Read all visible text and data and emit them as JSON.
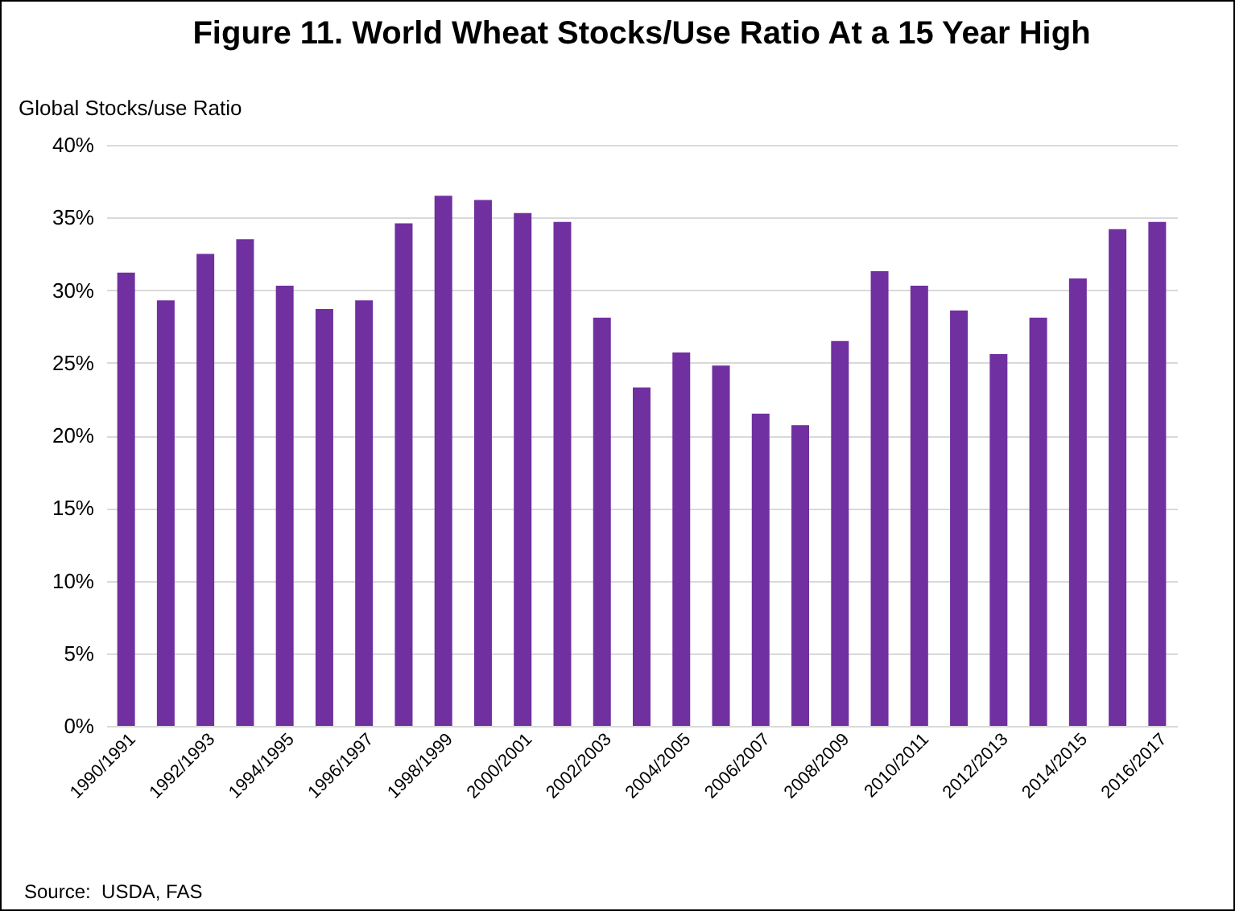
{
  "chart_data": {
    "type": "bar",
    "title": "Figure 11. World Wheat Stocks/Use Ratio At a 15 Year High",
    "ylabel": "Global Stocks/use Ratio",
    "categories": [
      "1990/1991",
      null,
      "1992/1993",
      null,
      "1994/1995",
      null,
      "1996/1997",
      null,
      "1998/1999",
      null,
      "2000/2001",
      null,
      "2002/2003",
      null,
      "2004/2005",
      null,
      "2006/2007",
      null,
      "2008/2009",
      null,
      "2010/2011",
      null,
      "2012/2013",
      null,
      "2014/2015",
      null,
      "2016/2017"
    ],
    "values": [
      31.2,
      29.3,
      32.5,
      33.5,
      30.3,
      28.7,
      29.3,
      34.6,
      36.5,
      36.2,
      35.3,
      34.7,
      28.1,
      23.3,
      25.7,
      24.8,
      21.5,
      20.7,
      26.5,
      31.3,
      30.3,
      28.6,
      25.6,
      28.1,
      30.8,
      34.2,
      34.7
    ],
    "color": "#7030a0",
    "ylim": [
      0,
      40
    ],
    "yticks": [
      {
        "value": 0,
        "label": "0%"
      },
      {
        "value": 5,
        "label": "5%"
      },
      {
        "value": 10,
        "label": "10%"
      },
      {
        "value": 15,
        "label": "15%"
      },
      {
        "value": 20,
        "label": "20%"
      },
      {
        "value": 25,
        "label": "25%"
      },
      {
        "value": 30,
        "label": "30%"
      },
      {
        "value": 35,
        "label": "35%"
      },
      {
        "value": 40,
        "label": "40%"
      }
    ],
    "grid": "y",
    "annotations": [
      "Source:  USDA, FAS"
    ]
  }
}
